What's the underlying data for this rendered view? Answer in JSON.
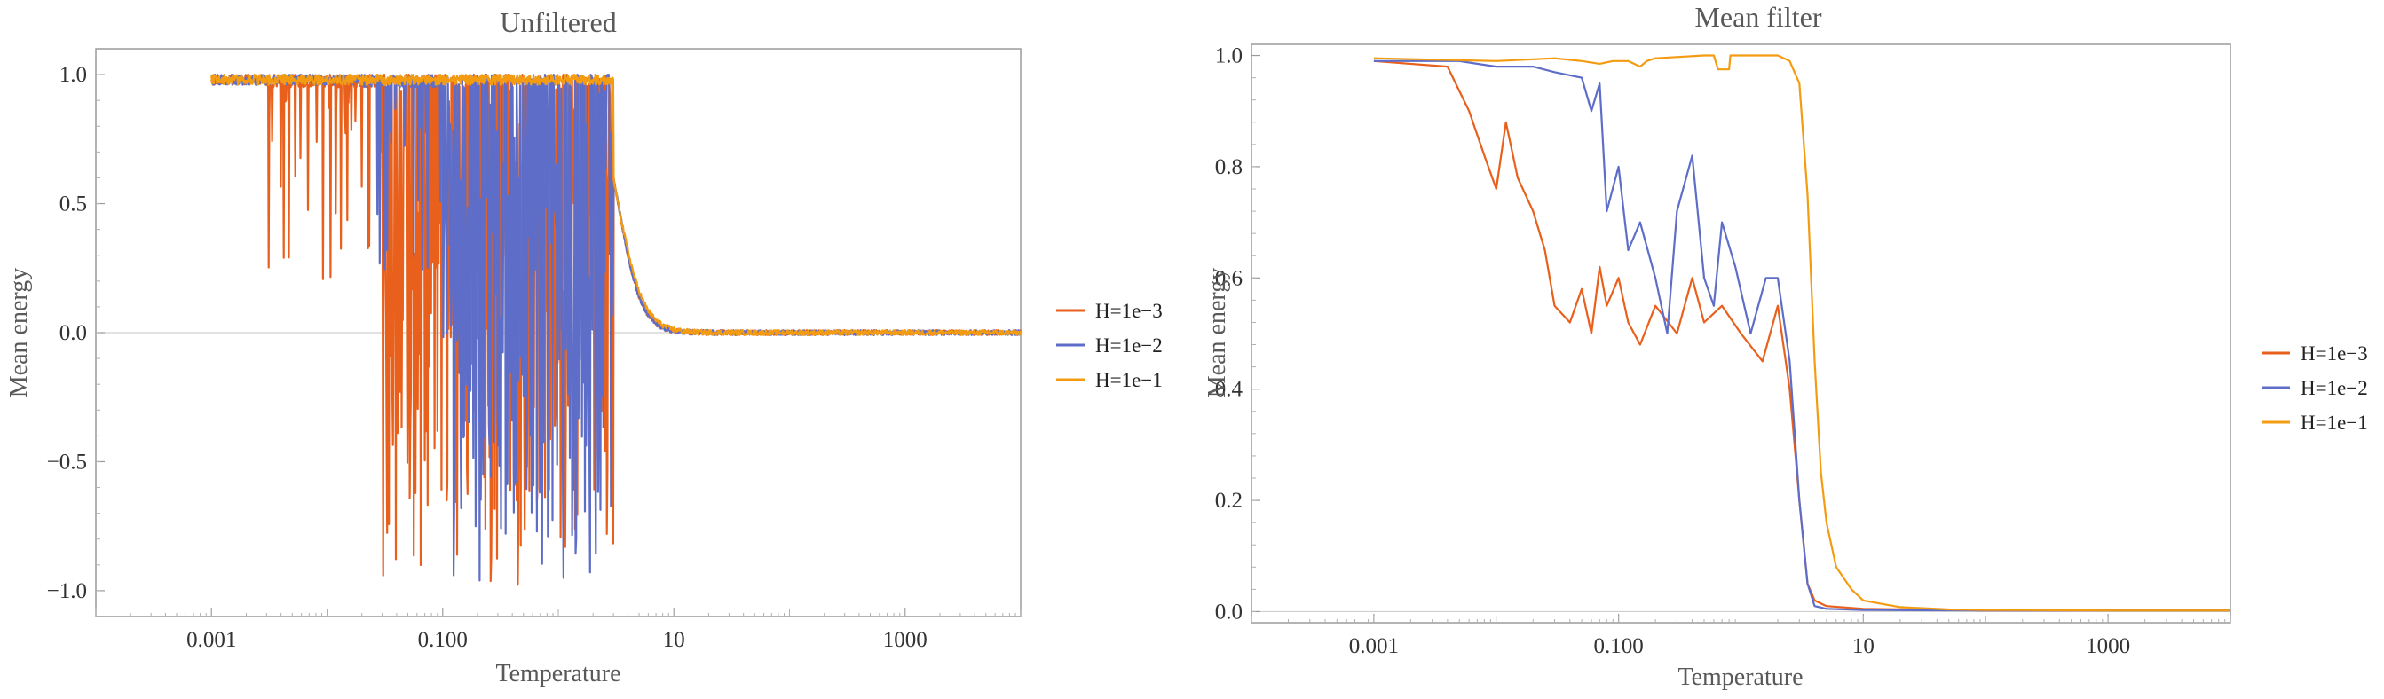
{
  "chart_data": [
    {
      "type": "line",
      "title": "Unfiltered",
      "xlabel": "Temperature",
      "ylabel": "Mean energy",
      "x_scale": "log",
      "xlim": [
        0.0001,
        10000
      ],
      "ylim": [
        -1.1,
        1.1
      ],
      "x_ticks": [
        "0.001",
        "0.100",
        "10",
        "1000"
      ],
      "y_ticks": [
        "-1.0",
        "-0.5",
        "0.0",
        "0.5",
        "1.0"
      ],
      "grid": false,
      "zero_line": true,
      "legend_position": "right",
      "series": [
        {
          "name": "H=1e-3",
          "color": "#e8601c",
          "shape": {
            "ordered_until": 0.003,
            "noise_start": 0.03,
            "noise_end": 3.0,
            "transition_T": 3.3,
            "width": 0.1,
            "min": -1.0
          }
        },
        {
          "name": "H=1e-2",
          "color": "#5e6ec8",
          "shape": {
            "ordered_until": 0.02,
            "noise_start": 0.1,
            "noise_end": 3.0,
            "transition_T": 3.3,
            "width": 0.1,
            "min": -1.0
          }
        },
        {
          "name": "H=1e-1",
          "color": "#f39c12",
          "shape": {
            "ordered_until": 3.0,
            "noise_start": 3.0,
            "noise_end": 3.0,
            "transition_T": 3.3,
            "width": 0.11,
            "min": 0.0
          }
        }
      ]
    },
    {
      "type": "line",
      "title": "Mean filter",
      "xlabel": "Temperature",
      "ylabel": "Mean energy",
      "x_scale": "log",
      "xlim": [
        0.0001,
        10000
      ],
      "ylim": [
        -0.02,
        1.02
      ],
      "x_ticks": [
        "0.001",
        "0.100",
        "10",
        "1000"
      ],
      "y_ticks": [
        "0.0",
        "0.2",
        "0.4",
        "0.6",
        "0.8",
        "1.0"
      ],
      "grid": false,
      "zero_line": true,
      "legend_position": "right",
      "series": [
        {
          "name": "H=1e-3",
          "color": "#e8601c",
          "points": [
            [
              0.0001,
              0.99
            ],
            [
              0.001,
              0.99
            ],
            [
              0.004,
              0.98
            ],
            [
              0.006,
              0.9
            ],
            [
              0.008,
              0.82
            ],
            [
              0.01,
              0.76
            ],
            [
              0.012,
              0.88
            ],
            [
              0.015,
              0.78
            ],
            [
              0.02,
              0.72
            ],
            [
              0.025,
              0.65
            ],
            [
              0.03,
              0.55
            ],
            [
              0.04,
              0.52
            ],
            [
              0.05,
              0.58
            ],
            [
              0.06,
              0.5
            ],
            [
              0.07,
              0.62
            ],
            [
              0.08,
              0.55
            ],
            [
              0.1,
              0.6
            ],
            [
              0.12,
              0.52
            ],
            [
              0.15,
              0.48
            ],
            [
              0.2,
              0.55
            ],
            [
              0.3,
              0.5
            ],
            [
              0.4,
              0.6
            ],
            [
              0.5,
              0.52
            ],
            [
              0.7,
              0.55
            ],
            [
              1.0,
              0.5
            ],
            [
              1.5,
              0.45
            ],
            [
              2.0,
              0.55
            ],
            [
              2.5,
              0.4
            ],
            [
              3.0,
              0.2
            ],
            [
              3.5,
              0.05
            ],
            [
              4.0,
              0.02
            ],
            [
              5.0,
              0.01
            ],
            [
              10,
              0.005
            ],
            [
              100,
              0.002
            ],
            [
              10000,
              0.002
            ]
          ]
        },
        {
          "name": "H=1e-2",
          "color": "#5e6ec8",
          "points": [
            [
              0.0001,
              0.99
            ],
            [
              0.001,
              0.99
            ],
            [
              0.005,
              0.99
            ],
            [
              0.01,
              0.98
            ],
            [
              0.02,
              0.98
            ],
            [
              0.03,
              0.97
            ],
            [
              0.05,
              0.96
            ],
            [
              0.06,
              0.9
            ],
            [
              0.07,
              0.95
            ],
            [
              0.08,
              0.72
            ],
            [
              0.1,
              0.8
            ],
            [
              0.12,
              0.65
            ],
            [
              0.15,
              0.7
            ],
            [
              0.2,
              0.6
            ],
            [
              0.25,
              0.5
            ],
            [
              0.3,
              0.72
            ],
            [
              0.4,
              0.82
            ],
            [
              0.5,
              0.6
            ],
            [
              0.6,
              0.55
            ],
            [
              0.7,
              0.7
            ],
            [
              0.9,
              0.62
            ],
            [
              1.2,
              0.5
            ],
            [
              1.6,
              0.6
            ],
            [
              2.0,
              0.6
            ],
            [
              2.5,
              0.45
            ],
            [
              3.0,
              0.2
            ],
            [
              3.5,
              0.05
            ],
            [
              4.0,
              0.01
            ],
            [
              5.0,
              0.005
            ],
            [
              10,
              0.003
            ],
            [
              100,
              0.002
            ],
            [
              10000,
              0.002
            ]
          ]
        },
        {
          "name": "H=1e-1",
          "color": "#f39c12",
          "points": [
            [
              0.0001,
              0.995
            ],
            [
              0.001,
              0.995
            ],
            [
              0.01,
              0.99
            ],
            [
              0.03,
              0.995
            ],
            [
              0.05,
              0.99
            ],
            [
              0.07,
              0.985
            ],
            [
              0.09,
              0.99
            ],
            [
              0.12,
              0.99
            ],
            [
              0.15,
              0.98
            ],
            [
              0.17,
              0.99
            ],
            [
              0.2,
              0.995
            ],
            [
              0.5,
              1.0
            ],
            [
              0.6,
              1.0
            ],
            [
              0.65,
              0.975
            ],
            [
              0.8,
              0.975
            ],
            [
              0.82,
              1.0
            ],
            [
              1.0,
              1.0
            ],
            [
              2.0,
              1.0
            ],
            [
              2.5,
              0.99
            ],
            [
              3.0,
              0.95
            ],
            [
              3.5,
              0.75
            ],
            [
              4.0,
              0.45
            ],
            [
              4.5,
              0.25
            ],
            [
              5.0,
              0.16
            ],
            [
              6.0,
              0.08
            ],
            [
              8.0,
              0.04
            ],
            [
              10,
              0.02
            ],
            [
              20,
              0.008
            ],
            [
              50,
              0.004
            ],
            [
              100,
              0.003
            ],
            [
              1000,
              0.002
            ],
            [
              10000,
              0.002
            ]
          ]
        }
      ]
    }
  ]
}
